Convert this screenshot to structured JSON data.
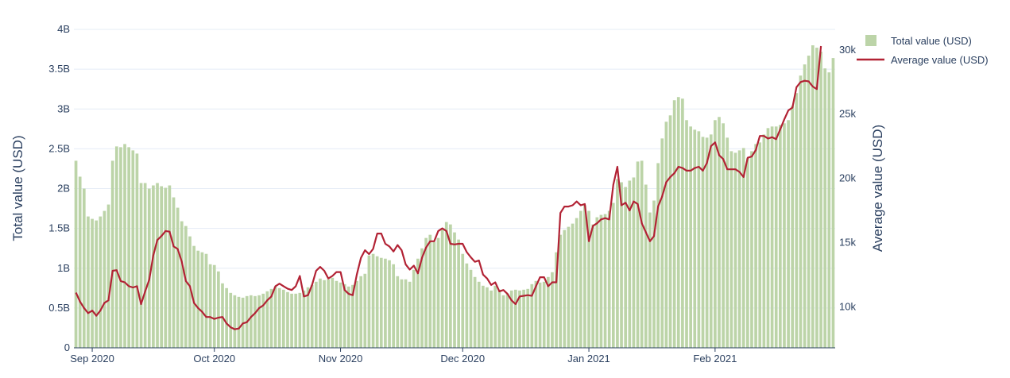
{
  "chart_data": {
    "type": "bar+line",
    "x_start": "2020-08-28",
    "x_ticks": [
      "Sep 2020",
      "Oct 2020",
      "Nov 2020",
      "Dec 2020",
      "Jan 2021",
      "Feb 2021"
    ],
    "y_left": {
      "label": "Total value (USD)",
      "range": [
        0,
        4000000000
      ],
      "ticks": [
        "0",
        "0.5B",
        "1B",
        "1.5B",
        "2B",
        "2.5B",
        "3B",
        "3.5B",
        "4B"
      ]
    },
    "y_right": {
      "label": "Average value (USD)",
      "range": [
        6800,
        31600
      ],
      "ticks": [
        "10k",
        "15k",
        "20k",
        "25k",
        "30k"
      ]
    },
    "legend_position": "top-right",
    "grid": true,
    "series": [
      {
        "name": "Total value (USD)",
        "type": "bar",
        "axis": "left",
        "color": "#bcd4a8",
        "values": [
          2350000000.0,
          2150000000.0,
          2000000000.0,
          1650000000.0,
          1620000000.0,
          1600000000.0,
          1650000000.0,
          1720000000.0,
          1800000000.0,
          2350000000.0,
          2530000000.0,
          2520000000.0,
          2560000000.0,
          2520000000.0,
          2480000000.0,
          2440000000.0,
          2070000000.0,
          2070000000.0,
          2000000000.0,
          2040000000.0,
          2070000000.0,
          2030000000.0,
          2010000000.0,
          2040000000.0,
          1890000000.0,
          1760000000.0,
          1590000000.0,
          1530000000.0,
          1400000000.0,
          1280000000.0,
          1220000000.0,
          1200000000.0,
          1180000000.0,
          1050000000.0,
          1040000000.0,
          960000000.0,
          810000000.0,
          750000000.0,
          690000000.0,
          660000000.0,
          640000000.0,
          630000000.0,
          650000000.0,
          660000000.0,
          650000000.0,
          660000000.0,
          680000000.0,
          710000000.0,
          740000000.0,
          770000000.0,
          750000000.0,
          730000000.0,
          700000000.0,
          680000000.0,
          680000000.0,
          690000000.0,
          720000000.0,
          760000000.0,
          790000000.0,
          830000000.0,
          870000000.0,
          850000000.0,
          860000000.0,
          880000000.0,
          840000000.0,
          820000000.0,
          800000000.0,
          770000000.0,
          790000000.0,
          840000000.0,
          900000000.0,
          930000000.0,
          1160000000.0,
          1180000000.0,
          1150000000.0,
          1130000000.0,
          1120000000.0,
          1100000000.0,
          1050000000.0,
          900000000.0,
          860000000.0,
          860000000.0,
          830000000.0,
          980000000.0,
          1120000000.0,
          1250000000.0,
          1380000000.0,
          1420000000.0,
          1330000000.0,
          1380000000.0,
          1500000000.0,
          1580000000.0,
          1550000000.0,
          1450000000.0,
          1360000000.0,
          1180000000.0,
          1060000000.0,
          980000000.0,
          890000000.0,
          830000000.0,
          780000000.0,
          760000000.0,
          720000000.0,
          780000000.0,
          730000000.0,
          660000000.0,
          680000000.0,
          720000000.0,
          730000000.0,
          720000000.0,
          730000000.0,
          740000000.0,
          800000000.0,
          840000000.0,
          820000000.0,
          830000000.0,
          890000000.0,
          950000000.0,
          1200000000.0,
          1420000000.0,
          1480000000.0,
          1520000000.0,
          1560000000.0,
          1630000000.0,
          1720000000.0,
          1790000000.0,
          1720000000.0,
          1550000000.0,
          1640000000.0,
          1670000000.0,
          1680000000.0,
          1720000000.0,
          1820000000.0,
          2120000000.0,
          2080000000.0,
          2020000000.0,
          2100000000.0,
          2140000000.0,
          2340000000.0,
          2350000000.0,
          2050000000.0,
          1700000000.0,
          1850000000.0,
          2320000000.0,
          2630000000.0,
          2840000000.0,
          2920000000.0,
          3110000000.0,
          3150000000.0,
          3130000000.0,
          2860000000.0,
          2780000000.0,
          2740000000.0,
          2720000000.0,
          2650000000.0,
          2640000000.0,
          2680000000.0,
          2860000000.0,
          2900000000.0,
          2820000000.0,
          2640000000.0,
          2470000000.0,
          2450000000.0,
          2480000000.0,
          2510000000.0,
          2380000000.0,
          2470000000.0,
          2560000000.0,
          2580000000.0,
          2680000000.0,
          2760000000.0,
          2780000000.0,
          2780000000.0,
          2800000000.0,
          2820000000.0,
          2860000000.0,
          3040000000.0,
          3200000000.0,
          3420000000.0,
          3560000000.0,
          3670000000.0,
          3800000000.0,
          3770000000.0,
          3720000000.0,
          3510000000.0,
          3460000000.0,
          3640000000.0
        ]
      },
      {
        "name": "Average value (USD)",
        "type": "line",
        "axis": "right",
        "color": "#b22234",
        "values": [
          11100,
          10400,
          9900,
          9500,
          9700,
          9300,
          9700,
          10300,
          10500,
          12800,
          12850,
          12000,
          11900,
          11600,
          11500,
          11600,
          10200,
          11200,
          12100,
          14000,
          15200,
          15500,
          15900,
          15850,
          14700,
          14500,
          13500,
          12000,
          11600,
          10300,
          9900,
          9600,
          9200,
          9200,
          9050,
          9150,
          9200,
          8700,
          8400,
          8250,
          8300,
          8700,
          8800,
          9200,
          9500,
          9900,
          10100,
          10500,
          10800,
          11600,
          11800,
          11600,
          11400,
          11300,
          11600,
          12400,
          10800,
          10900,
          11700,
          12800,
          13100,
          12800,
          12200,
          12400,
          12700,
          12700,
          11300,
          11000,
          10900,
          12500,
          13800,
          14400,
          14100,
          14500,
          15700,
          15700,
          14900,
          14700,
          14300,
          14800,
          14400,
          13300,
          12900,
          13200,
          12600,
          13800,
          14600,
          15100,
          15100,
          15900,
          16100,
          15900,
          14900,
          14850,
          14900,
          14900,
          14250,
          13850,
          13500,
          13600,
          12500,
          12200,
          11700,
          11900,
          11200,
          11300,
          11000,
          10500,
          10200,
          10800,
          10850,
          10900,
          10850,
          11600,
          12300,
          12300,
          11600,
          11900,
          11900,
          17300,
          17800,
          17800,
          17900,
          18200,
          17900,
          18000,
          15100,
          16300,
          16500,
          16800,
          16900,
          16800,
          19500,
          20900,
          17900,
          18100,
          17500,
          18200,
          18000,
          16500,
          15800,
          15100,
          15500,
          17800,
          18600,
          19700,
          20100,
          20400,
          20900,
          20800,
          20600,
          20600,
          20800,
          20900,
          20600,
          21200,
          22500,
          22800,
          21800,
          21500,
          20700,
          20700,
          20700,
          20500,
          20100,
          21600,
          21700,
          22200,
          23300,
          23300,
          23100,
          23200,
          23050,
          23800,
          24600,
          25300,
          25500,
          27100,
          27500,
          27600,
          27550,
          27150,
          26950,
          30300
        ]
      }
    ]
  }
}
